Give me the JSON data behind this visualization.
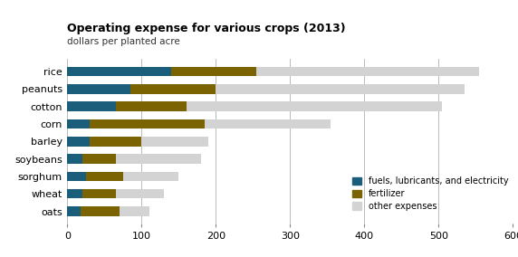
{
  "title": "Operating expense for various crops (2013)",
  "subtitle": "dollars per planted acre",
  "crops": [
    "oats",
    "wheat",
    "sorghum",
    "soybeans",
    "barley",
    "corn",
    "cotton",
    "peanuts",
    "rice"
  ],
  "fuels": [
    18,
    20,
    25,
    20,
    30,
    30,
    65,
    85,
    140
  ],
  "fertilizer": [
    52,
    45,
    50,
    45,
    70,
    155,
    95,
    115,
    115
  ],
  "other": [
    40,
    65,
    75,
    115,
    90,
    170,
    345,
    335,
    300
  ],
  "colors": {
    "fuels": "#1b5e7b",
    "fertilizer": "#7a6300",
    "other": "#d3d3d3"
  },
  "xlim": [
    0,
    600
  ],
  "xticks": [
    0,
    100,
    200,
    300,
    400,
    500,
    600
  ],
  "legend_labels": [
    "fuels, lubricants, and electricity",
    "fertilizer",
    "other expenses"
  ],
  "bar_height": 0.55
}
